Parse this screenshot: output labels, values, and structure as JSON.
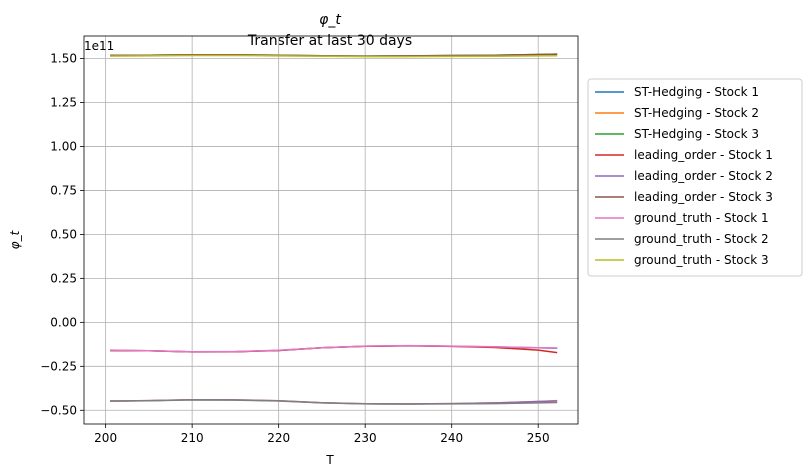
{
  "chart_data": {
    "type": "line",
    "title": "φ_t",
    "subtitle": "Transfer at last 30 days",
    "xlabel": "T",
    "ylabel": "φ_t",
    "y_offset_label": "1e11",
    "y_scale_factor": 100000000000.0,
    "xlim": [
      197.5,
      254.6
    ],
    "ylim": [
      -0.578,
      1.628
    ],
    "x_ticks": [
      200,
      210,
      220,
      230,
      240,
      250
    ],
    "x_tick_labels": [
      "200",
      "210",
      "220",
      "230",
      "240",
      "250"
    ],
    "y_ticks": [
      -0.5,
      -0.25,
      0.0,
      0.25,
      0.5,
      0.75,
      1.0,
      1.25,
      1.5
    ],
    "y_tick_labels": [
      "−0.50",
      "−0.25",
      "0.00",
      "0.25",
      "0.50",
      "0.75",
      "1.00",
      "1.25",
      "1.50"
    ],
    "grid": true,
    "legend_position": "outside-right",
    "x": [
      200.5,
      205,
      210,
      215,
      220,
      225,
      230,
      235,
      240,
      245,
      250,
      252.2
    ],
    "series": [
      {
        "name": "ST-Hedging - Stock 1",
        "color": "#1f77b4",
        "values": [
          -0.16,
          -0.162,
          -0.168,
          -0.167,
          -0.16,
          -0.145,
          -0.136,
          -0.133,
          -0.136,
          -0.14,
          -0.145,
          -0.147
        ]
      },
      {
        "name": "ST-Hedging - Stock 2",
        "color": "#ff7f0e",
        "values": [
          -0.447,
          -0.445,
          -0.44,
          -0.441,
          -0.446,
          -0.457,
          -0.463,
          -0.464,
          -0.462,
          -0.458,
          -0.45,
          -0.445
        ]
      },
      {
        "name": "ST-Hedging - Stock 3",
        "color": "#2ca02c",
        "values": [
          1.518,
          1.519,
          1.521,
          1.521,
          1.518,
          1.516,
          1.514,
          1.515,
          1.517,
          1.519,
          1.523,
          1.525
        ]
      },
      {
        "name": "leading_order - Stock 1",
        "color": "#d62728",
        "values": [
          -0.16,
          -0.162,
          -0.168,
          -0.167,
          -0.16,
          -0.145,
          -0.136,
          -0.133,
          -0.137,
          -0.143,
          -0.158,
          -0.172
        ]
      },
      {
        "name": "leading_order - Stock 2",
        "color": "#9467bd",
        "values": [
          -0.447,
          -0.445,
          -0.44,
          -0.441,
          -0.446,
          -0.457,
          -0.463,
          -0.464,
          -0.462,
          -0.458,
          -0.45,
          -0.447
        ]
      },
      {
        "name": "leading_order - Stock 3",
        "color": "#8c564b",
        "values": [
          1.518,
          1.519,
          1.521,
          1.521,
          1.518,
          1.516,
          1.514,
          1.515,
          1.517,
          1.519,
          1.523,
          1.525
        ]
      },
      {
        "name": "ground_truth - Stock 1",
        "color": "#e377c2",
        "values": [
          -0.158,
          -0.161,
          -0.167,
          -0.166,
          -0.159,
          -0.144,
          -0.135,
          -0.132,
          -0.135,
          -0.139,
          -0.144,
          -0.146
        ]
      },
      {
        "name": "ground_truth - Stock 2",
        "color": "#7f7f7f",
        "values": [
          -0.448,
          -0.446,
          -0.441,
          -0.442,
          -0.447,
          -0.458,
          -0.464,
          -0.465,
          -0.464,
          -0.462,
          -0.458,
          -0.456
        ]
      },
      {
        "name": "ground_truth - Stock 3",
        "color": "#bcbd22",
        "values": [
          1.514,
          1.515,
          1.517,
          1.517,
          1.515,
          1.513,
          1.511,
          1.511,
          1.512,
          1.513,
          1.515,
          1.516
        ]
      }
    ]
  }
}
